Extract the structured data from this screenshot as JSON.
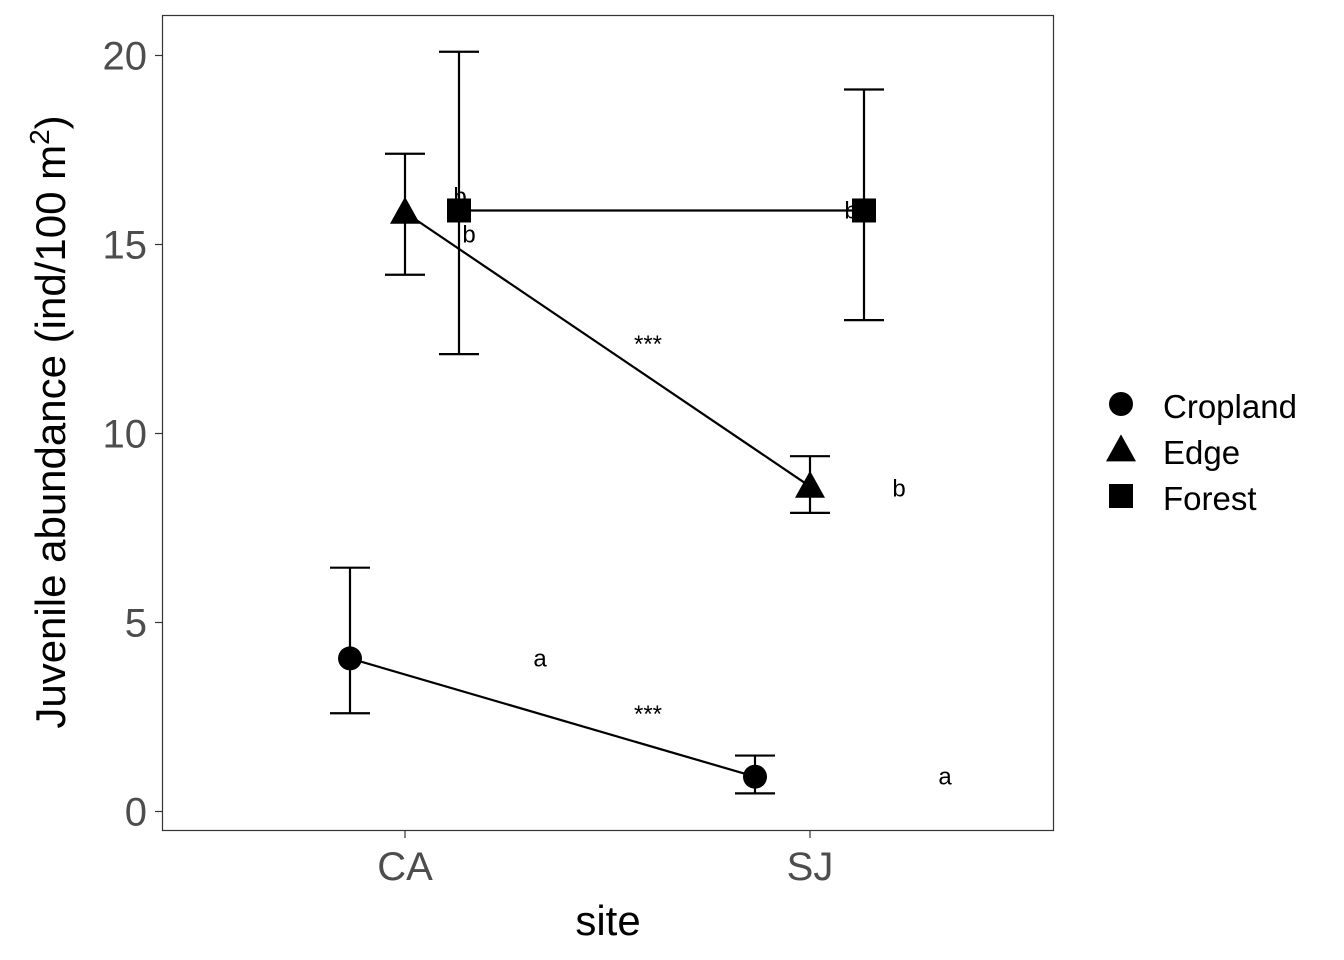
{
  "chart_data": {
    "type": "line",
    "xlabel": "site",
    "ylabel": "Juvenile abundance (ind/100 m",
    "ylabel_sup": "2",
    "ylabel_close": ")",
    "categories": [
      "CA",
      "SJ"
    ],
    "ylim": [
      0,
      21
    ],
    "yticks": [
      "0",
      "5",
      "10",
      "15",
      "20"
    ],
    "grid": false,
    "legend_position": "right",
    "series": [
      {
        "name": "Cropland",
        "marker": "circle",
        "values": [
          4.05,
          0.92
        ],
        "err_low": [
          2.6,
          0.48
        ],
        "err_high": [
          6.45,
          1.48
        ],
        "letters": [
          "a",
          "a"
        ]
      },
      {
        "name": "Edge",
        "marker": "triangle",
        "values": [
          15.85,
          8.6
        ],
        "err_low": [
          14.2,
          7.9
        ],
        "err_high": [
          17.4,
          9.4
        ],
        "letters": [
          "b",
          "b"
        ]
      },
      {
        "name": "Forest",
        "marker": "square",
        "values": [
          15.9,
          15.9
        ],
        "err_low": [
          12.1,
          13.0
        ],
        "err_high": [
          20.1,
          19.1
        ],
        "letters": [
          "b",
          "b"
        ]
      }
    ],
    "annotations": [
      {
        "text": "***",
        "series": "Edge"
      },
      {
        "text": "***",
        "series": "Cropland"
      }
    ]
  }
}
